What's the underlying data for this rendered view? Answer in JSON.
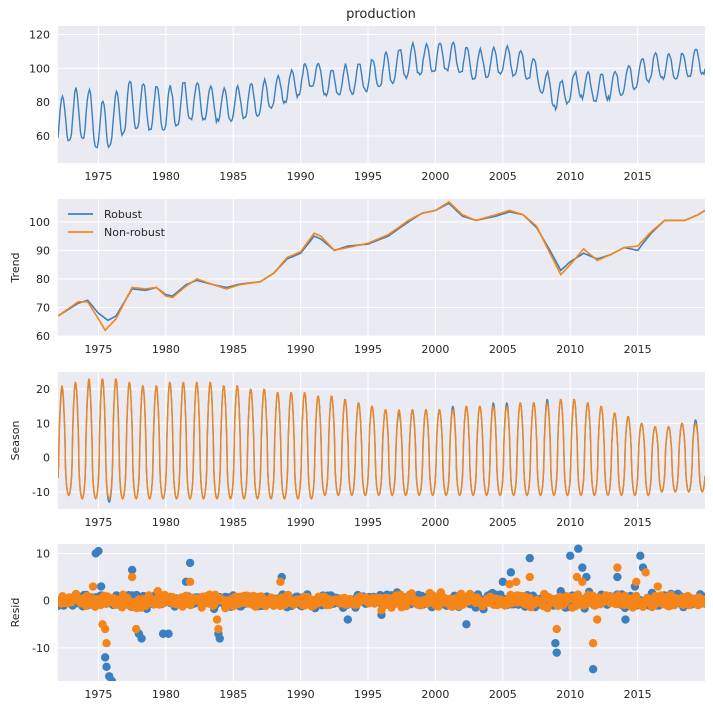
{
  "figure": {
    "title": "production"
  },
  "colors": {
    "robust": "#3a80c0",
    "nonrobust": "#f58518",
    "axes_bg": "#eaeaf2",
    "grid": "#ffffff",
    "text": "#262626"
  },
  "legend": {
    "robust": "Robust",
    "nonrobust": "Non-robust"
  },
  "chart_data": [
    {
      "type": "line",
      "id": "observed",
      "title": "production",
      "ylabel": "",
      "xlim": [
        1972,
        2020
      ],
      "ylim": [
        44,
        125
      ],
      "yticks": [
        60,
        80,
        100,
        120
      ],
      "xticks": [
        1975,
        1980,
        1985,
        1990,
        1995,
        2000,
        2005,
        2010,
        2015
      ],
      "series": [
        {
          "start": 1972.0,
          "step": 0.08333,
          "seasonal_amplitude": [
            16,
            18,
            18,
            17,
            17,
            16,
            15,
            14,
            13,
            12,
            11,
            11,
            11,
            10,
            10,
            9,
            9,
            10,
            10,
            11,
            11,
            11,
            10,
            10,
            10,
            10,
            10,
            9,
            9,
            9,
            9,
            9,
            9,
            9,
            9,
            9,
            9,
            9,
            9,
            9,
            9
          ],
          "trend_knots": [
            [
              1972,
              67
            ],
            [
              1974,
              72
            ],
            [
              1975.3,
              63
            ],
            [
              1977.5,
              77
            ],
            [
              1980,
              74
            ],
            [
              1982,
              80
            ],
            [
              1984,
              77
            ],
            [
              1985.5,
              78
            ],
            [
              1987.5,
              82
            ],
            [
              1989,
              88
            ],
            [
              1991,
              96
            ],
            [
              1992,
              90
            ],
            [
              1995,
              94
            ],
            [
              1998,
              103
            ],
            [
              2001,
              106
            ],
            [
              2003,
              101
            ],
            [
              2005.3,
              104
            ],
            [
              2007,
              100
            ],
            [
              2009,
              82
            ],
            [
              2010.5,
              90
            ],
            [
              2012,
              87
            ],
            [
              2014,
              91
            ],
            [
              2016,
              100
            ],
            [
              2018,
              100
            ],
            [
              2020,
              104
            ]
          ]
        }
      ]
    },
    {
      "type": "line",
      "id": "trend",
      "ylabel": "Trend",
      "xlim": [
        1972,
        2020
      ],
      "ylim": [
        60,
        108
      ],
      "yticks": [
        60,
        70,
        80,
        90,
        100
      ],
      "xticks": [
        1975,
        1980,
        1985,
        1990,
        1995,
        2000,
        2005,
        2010,
        2015
      ],
      "series": [
        {
          "name": "Robust",
          "knots": [
            [
              1972,
              67
            ],
            [
              1973.5,
              71.5
            ],
            [
              1974.2,
              72.5
            ],
            [
              1975,
              68
            ],
            [
              1975.7,
              65.5
            ],
            [
              1976.3,
              67
            ],
            [
              1977.5,
              76.5
            ],
            [
              1978.5,
              76
            ],
            [
              1979.3,
              77
            ],
            [
              1980,
              74.5
            ],
            [
              1980.5,
              74
            ],
            [
              1981.5,
              78
            ],
            [
              1982.3,
              79.5
            ],
            [
              1983.5,
              78
            ],
            [
              1984.5,
              77
            ],
            [
              1985.5,
              78.2
            ],
            [
              1987,
              79
            ],
            [
              1988,
              82
            ],
            [
              1989,
              87
            ],
            [
              1990,
              89
            ],
            [
              1991,
              95
            ],
            [
              1991.5,
              94
            ],
            [
              1992.5,
              90
            ],
            [
              1993.5,
              91.5
            ],
            [
              1995,
              92.2
            ],
            [
              1996.5,
              95
            ],
            [
              1998,
              100
            ],
            [
              1999,
              103
            ],
            [
              2000,
              104
            ],
            [
              2001,
              106.5
            ],
            [
              2002,
              102
            ],
            [
              2003,
              100.5
            ],
            [
              2004.5,
              102
            ],
            [
              2005.5,
              103.5
            ],
            [
              2006.5,
              102.5
            ],
            [
              2007.5,
              98
            ],
            [
              2008.5,
              90
            ],
            [
              2009.3,
              83
            ],
            [
              2010,
              86
            ],
            [
              2011,
              89
            ],
            [
              2012,
              87
            ],
            [
              2013,
              88.5
            ],
            [
              2014,
              91
            ],
            [
              2015,
              90
            ],
            [
              2016,
              96
            ],
            [
              2017,
              100.5
            ],
            [
              2018.5,
              100.5
            ],
            [
              2019.5,
              102.5
            ],
            [
              2020,
              104
            ]
          ]
        },
        {
          "name": "Non-robust",
          "knots": [
            [
              1972,
              67
            ],
            [
              1973.5,
              72
            ],
            [
              1974.2,
              72
            ],
            [
              1975,
              66
            ],
            [
              1975.5,
              62
            ],
            [
              1976.3,
              66
            ],
            [
              1977.5,
              77
            ],
            [
              1978.5,
              76.5
            ],
            [
              1979.3,
              77
            ],
            [
              1980,
              74
            ],
            [
              1980.5,
              73.5
            ],
            [
              1981.5,
              77.5
            ],
            [
              1982.3,
              80
            ],
            [
              1983.5,
              78
            ],
            [
              1984.5,
              76.5
            ],
            [
              1985.5,
              78
            ],
            [
              1987,
              79
            ],
            [
              1988,
              82
            ],
            [
              1989,
              87.5
            ],
            [
              1990,
              89.5
            ],
            [
              1991,
              96
            ],
            [
              1991.5,
              95
            ],
            [
              1992.5,
              90
            ],
            [
              1993.5,
              91
            ],
            [
              1995,
              92.5
            ],
            [
              1996.5,
              95.5
            ],
            [
              1998,
              100.5
            ],
            [
              1999,
              103
            ],
            [
              2000,
              104
            ],
            [
              2001,
              107
            ],
            [
              2002,
              102.5
            ],
            [
              2003,
              100.5
            ],
            [
              2004.5,
              102.5
            ],
            [
              2005.5,
              104
            ],
            [
              2006.5,
              102.5
            ],
            [
              2007.5,
              98.5
            ],
            [
              2008.5,
              89
            ],
            [
              2009.3,
              81.5
            ],
            [
              2010,
              85
            ],
            [
              2011,
              90.5
            ],
            [
              2012,
              86.5
            ],
            [
              2013,
              88.5
            ],
            [
              2014,
              91
            ],
            [
              2015,
              91.5
            ],
            [
              2016,
              96.5
            ],
            [
              2017,
              100.5
            ],
            [
              2018.5,
              100.5
            ],
            [
              2019.5,
              102.5
            ],
            [
              2020,
              104
            ]
          ]
        }
      ]
    },
    {
      "type": "line",
      "id": "season",
      "ylabel": "Season",
      "xlim": [
        1972,
        2020
      ],
      "ylim": [
        -15,
        25
      ],
      "yticks": [
        -10,
        0,
        10,
        20
      ],
      "xticks": [
        1975,
        1980,
        1985,
        1990,
        1995,
        2000,
        2005,
        2010,
        2015
      ],
      "series": [
        {
          "name": "Robust",
          "peak_by_year": [
            20,
            22,
            22,
            23,
            23,
            22,
            21,
            21,
            22,
            22,
            22,
            22,
            21,
            21,
            20,
            20,
            19,
            19,
            19,
            18,
            18,
            17,
            16,
            15,
            14,
            13,
            14,
            14,
            14,
            15,
            15,
            15,
            16,
            16,
            16,
            16,
            17,
            17,
            17,
            16,
            15,
            13,
            12,
            10,
            9,
            9,
            10,
            11
          ],
          "trough_by_year": [
            -11,
            -12,
            -12,
            -13,
            -12,
            -12,
            -12,
            -12,
            -12,
            -12,
            -12,
            -12,
            -12,
            -12,
            -12,
            -12,
            -12,
            -12,
            -12,
            -11,
            -11,
            -11,
            -11,
            -11,
            -11,
            -11,
            -11,
            -11,
            -11,
            -11,
            -11,
            -11,
            -11,
            -11,
            -11,
            -11,
            -11,
            -11,
            -11,
            -11,
            -11,
            -11,
            -11,
            -11,
            -10,
            -10,
            -10,
            -10
          ]
        },
        {
          "name": "Non-robust",
          "peak_by_year": [
            21,
            22,
            23,
            23,
            23,
            22,
            21,
            21,
            22,
            22,
            22,
            22,
            21,
            21,
            20,
            20,
            19,
            19,
            19,
            18,
            18,
            17,
            16,
            15,
            14,
            14,
            14,
            14,
            14,
            14,
            15,
            15,
            15,
            15,
            16,
            16,
            16,
            17,
            17,
            16,
            15,
            13,
            12,
            10,
            9,
            9,
            10,
            10
          ],
          "trough_by_year": [
            -11,
            -12,
            -12,
            -12,
            -12,
            -12,
            -12,
            -12,
            -12,
            -12,
            -12,
            -12,
            -12,
            -12,
            -12,
            -12,
            -12,
            -12,
            -12,
            -11,
            -11,
            -11,
            -11,
            -11,
            -11,
            -11,
            -11,
            -11,
            -11,
            -11,
            -11,
            -11,
            -11,
            -11,
            -11,
            -11,
            -11,
            -11,
            -11,
            -11,
            -11,
            -11,
            -11,
            -11,
            -10,
            -10,
            -10,
            -10
          ]
        }
      ]
    },
    {
      "type": "scatter",
      "id": "resid",
      "ylabel": "Resid",
      "xlim": [
        1972,
        2020
      ],
      "ylim": [
        -17,
        12
      ],
      "yticks": [
        -10,
        0,
        10
      ],
      "xticks": [
        1975,
        1980,
        1985,
        1990,
        1995,
        2000,
        2005,
        2010,
        2015
      ],
      "series": [
        {
          "name": "Robust",
          "outliers": [
            [
              1974.8,
              10
            ],
            [
              1975.0,
              10.5
            ],
            [
              1975.2,
              3
            ],
            [
              1975.5,
              -12
            ],
            [
              1975.6,
              -14
            ],
            [
              1975.8,
              -16
            ],
            [
              1976.0,
              -17
            ],
            [
              1977.5,
              6.5
            ],
            [
              1978.0,
              -7
            ],
            [
              1978.2,
              -8
            ],
            [
              1979.8,
              -7
            ],
            [
              1980.2,
              -7
            ],
            [
              1981.5,
              4
            ],
            [
              1981.8,
              8
            ],
            [
              1983.9,
              -7
            ],
            [
              1984.0,
              -8
            ],
            [
              1988.6,
              5
            ],
            [
              1993.5,
              -4
            ],
            [
              1996.0,
              -3
            ],
            [
              2002.3,
              -5
            ],
            [
              2005.0,
              4
            ],
            [
              2005.6,
              6
            ],
            [
              2007.0,
              9
            ],
            [
              2008.9,
              -9
            ],
            [
              2009.0,
              -11
            ],
            [
              2009.3,
              2
            ],
            [
              2010.0,
              9.5
            ],
            [
              2010.6,
              11
            ],
            [
              2010.9,
              7
            ],
            [
              2011.2,
              5
            ],
            [
              2011.7,
              -14.5
            ],
            [
              2013.5,
              5
            ],
            [
              2014.1,
              -4
            ],
            [
              2014.8,
              3
            ],
            [
              2015.2,
              9.5
            ],
            [
              2015.4,
              7
            ]
          ]
        },
        {
          "name": "Non-robust",
          "outliers": [
            [
              1974.6,
              3
            ],
            [
              1975.3,
              -5
            ],
            [
              1975.5,
              -6
            ],
            [
              1975.6,
              -9
            ],
            [
              1977.5,
              5
            ],
            [
              1977.8,
              -6
            ],
            [
              1979.4,
              2
            ],
            [
              1981.8,
              4
            ],
            [
              1983.8,
              -4
            ],
            [
              1983.9,
              -6
            ],
            [
              1988.5,
              4
            ],
            [
              1996.0,
              -2
            ],
            [
              2005.5,
              3.5
            ],
            [
              2006.0,
              4
            ],
            [
              2007.0,
              5
            ],
            [
              2009.0,
              -6
            ],
            [
              2010.5,
              5
            ],
            [
              2010.9,
              4
            ],
            [
              2011.7,
              -9
            ],
            [
              2012.0,
              -4
            ],
            [
              2013.5,
              7
            ],
            [
              2014.9,
              4
            ],
            [
              2015.6,
              6
            ],
            [
              2016.5,
              3
            ]
          ]
        }
      ]
    }
  ]
}
